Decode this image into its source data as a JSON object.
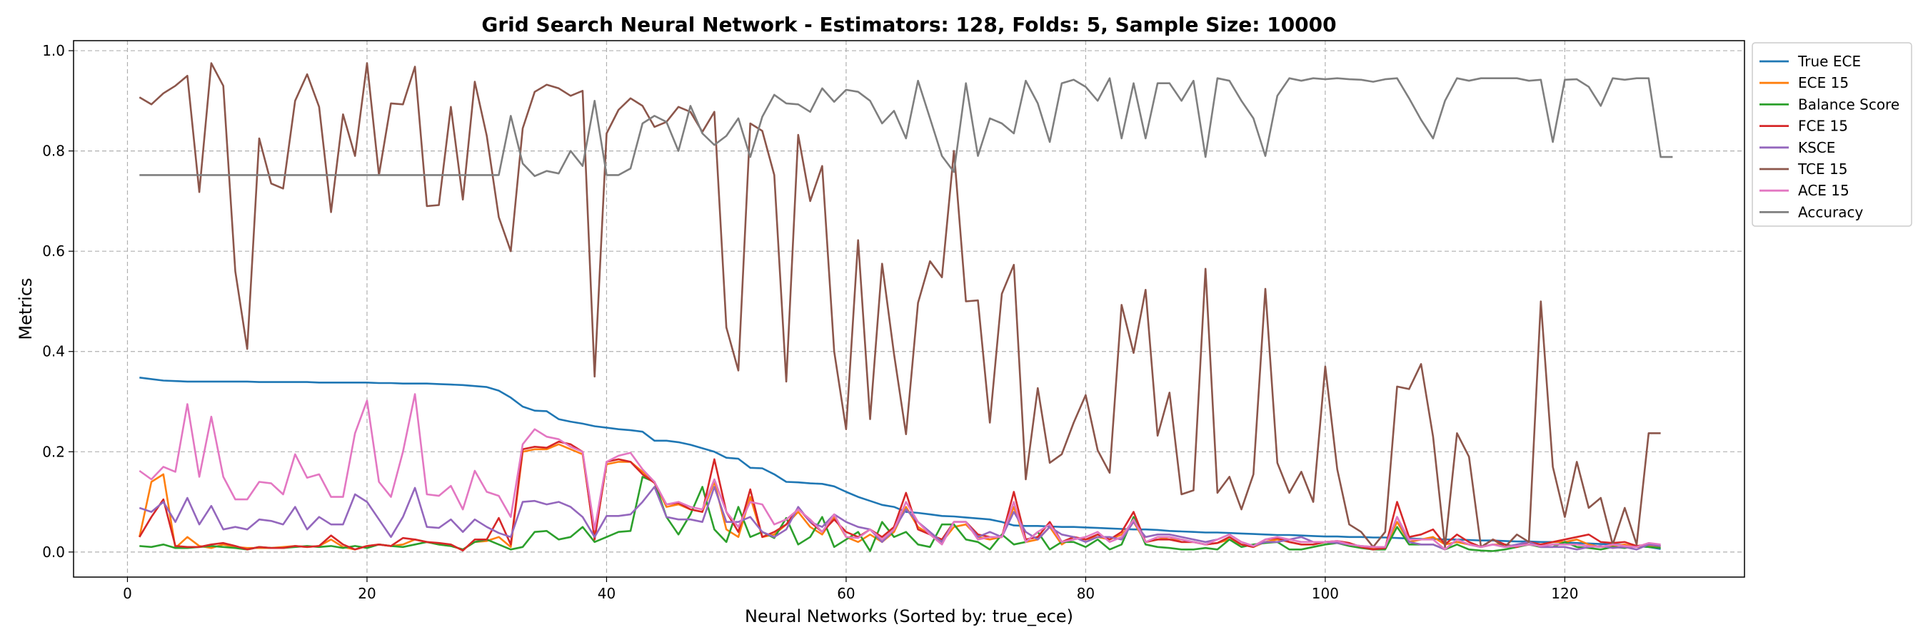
{
  "chart_data": {
    "type": "line",
    "title": "Grid Search Neural Network - Estimators: 128, Folds: 5, Sample Size: 10000",
    "xlabel": "Neural Networks (Sorted by: true_ece)",
    "ylabel": "Metrics",
    "xlim": [
      -4.5,
      135
    ],
    "ylim": [
      -0.05,
      1.02
    ],
    "xticks": [
      0,
      20,
      40,
      60,
      80,
      100,
      120
    ],
    "yticks": [
      0.0,
      0.2,
      0.4,
      0.6,
      0.8,
      1.0
    ],
    "xtick_labels": [
      "0",
      "20",
      "40",
      "60",
      "80",
      "100",
      "120"
    ],
    "ytick_labels": [
      "0.0",
      "0.2",
      "0.4",
      "0.6",
      "0.8",
      "1.0"
    ],
    "grid": true,
    "legend_position": "outside-top-right",
    "x_start": 1,
    "series": [
      {
        "name": "True ECE",
        "color": "#1f77b4",
        "values": [
          0.348,
          0.345,
          0.342,
          0.341,
          0.34,
          0.34,
          0.34,
          0.34,
          0.34,
          0.34,
          0.339,
          0.339,
          0.339,
          0.339,
          0.339,
          0.338,
          0.338,
          0.338,
          0.338,
          0.338,
          0.337,
          0.337,
          0.336,
          0.336,
          0.336,
          0.335,
          0.334,
          0.333,
          0.331,
          0.329,
          0.322,
          0.308,
          0.29,
          0.282,
          0.281,
          0.265,
          0.26,
          0.256,
          0.251,
          0.248,
          0.245,
          0.243,
          0.24,
          0.222,
          0.222,
          0.219,
          0.214,
          0.207,
          0.2,
          0.188,
          0.186,
          0.168,
          0.167,
          0.155,
          0.14,
          0.139,
          0.137,
          0.136,
          0.131,
          0.12,
          0.11,
          0.102,
          0.094,
          0.09,
          0.08,
          0.078,
          0.075,
          0.072,
          0.071,
          0.069,
          0.067,
          0.065,
          0.06,
          0.053,
          0.052,
          0.052,
          0.051,
          0.05,
          0.05,
          0.049,
          0.048,
          0.047,
          0.046,
          0.045,
          0.045,
          0.044,
          0.042,
          0.041,
          0.04,
          0.039,
          0.039,
          0.038,
          0.037,
          0.036,
          0.035,
          0.034,
          0.034,
          0.033,
          0.032,
          0.031,
          0.031,
          0.03,
          0.03,
          0.029,
          0.029,
          0.028,
          0.027,
          0.026,
          0.026,
          0.025,
          0.025,
          0.024,
          0.023,
          0.023,
          0.022,
          0.021,
          0.021,
          0.02,
          0.02,
          0.019,
          0.018,
          0.017,
          0.016,
          0.015,
          0.014,
          0.012,
          0.01,
          0.006
        ]
      },
      {
        "name": "ECE 15",
        "color": "#ff7f0e",
        "values": [
          0.03,
          0.14,
          0.155,
          0.008,
          0.03,
          0.012,
          0.008,
          0.015,
          0.01,
          0.008,
          0.008,
          0.008,
          0.01,
          0.012,
          0.01,
          0.012,
          0.025,
          0.01,
          0.005,
          0.012,
          0.015,
          0.012,
          0.015,
          0.025,
          0.02,
          0.015,
          0.012,
          0.005,
          0.02,
          0.022,
          0.03,
          0.01,
          0.2,
          0.205,
          0.205,
          0.215,
          0.205,
          0.195,
          0.03,
          0.175,
          0.18,
          0.18,
          0.16,
          0.14,
          0.09,
          0.095,
          0.085,
          0.08,
          0.14,
          0.045,
          0.03,
          0.11,
          0.03,
          0.035,
          0.055,
          0.08,
          0.05,
          0.035,
          0.07,
          0.03,
          0.02,
          0.035,
          0.02,
          0.04,
          0.09,
          0.05,
          0.035,
          0.02,
          0.05,
          0.055,
          0.03,
          0.025,
          0.03,
          0.09,
          0.02,
          0.025,
          0.05,
          0.015,
          0.03,
          0.025,
          0.03,
          0.025,
          0.035,
          0.06,
          0.02,
          0.025,
          0.03,
          0.02,
          0.02,
          0.015,
          0.018,
          0.025,
          0.015,
          0.01,
          0.02,
          0.025,
          0.02,
          0.015,
          0.015,
          0.02,
          0.02,
          0.015,
          0.01,
          0.008,
          0.01,
          0.06,
          0.02,
          0.025,
          0.03,
          0.015,
          0.02,
          0.015,
          0.01,
          0.015,
          0.015,
          0.01,
          0.015,
          0.015,
          0.02,
          0.02,
          0.025,
          0.015,
          0.01,
          0.012,
          0.015,
          0.01,
          0.012,
          0.01
        ]
      },
      {
        "name": "Balance Score",
        "color": "#2ca02c",
        "values": [
          0.012,
          0.01,
          0.015,
          0.008,
          0.008,
          0.01,
          0.012,
          0.01,
          0.008,
          0.005,
          0.01,
          0.008,
          0.008,
          0.01,
          0.012,
          0.01,
          0.012,
          0.008,
          0.012,
          0.008,
          0.015,
          0.012,
          0.01,
          0.015,
          0.02,
          0.015,
          0.012,
          0.005,
          0.02,
          0.025,
          0.015,
          0.005,
          0.01,
          0.04,
          0.042,
          0.025,
          0.03,
          0.05,
          0.02,
          0.03,
          0.04,
          0.042,
          0.15,
          0.14,
          0.07,
          0.035,
          0.075,
          0.13,
          0.045,
          0.02,
          0.09,
          0.03,
          0.04,
          0.028,
          0.068,
          0.015,
          0.03,
          0.07,
          0.01,
          0.025,
          0.04,
          0.002,
          0.06,
          0.03,
          0.04,
          0.015,
          0.01,
          0.055,
          0.055,
          0.025,
          0.02,
          0.005,
          0.035,
          0.015,
          0.02,
          0.04,
          0.005,
          0.02,
          0.02,
          0.01,
          0.025,
          0.005,
          0.015,
          0.07,
          0.015,
          0.01,
          0.008,
          0.005,
          0.005,
          0.008,
          0.005,
          0.025,
          0.01,
          0.015,
          0.018,
          0.02,
          0.005,
          0.005,
          0.01,
          0.015,
          0.018,
          0.012,
          0.008,
          0.005,
          0.005,
          0.05,
          0.015,
          0.015,
          0.015,
          0.005,
          0.015,
          0.005,
          0.003,
          0.002,
          0.005,
          0.01,
          0.015,
          0.01,
          0.01,
          0.02,
          0.01,
          0.008,
          0.005,
          0.01,
          0.008,
          0.012,
          0.01,
          0.008
        ]
      },
      {
        "name": "FCE 15",
        "color": "#d62728",
        "values": [
          0.03,
          0.07,
          0.105,
          0.012,
          0.01,
          0.01,
          0.015,
          0.018,
          0.012,
          0.005,
          0.01,
          0.008,
          0.008,
          0.012,
          0.01,
          0.012,
          0.033,
          0.015,
          0.005,
          0.012,
          0.015,
          0.012,
          0.028,
          0.025,
          0.02,
          0.018,
          0.015,
          0.003,
          0.025,
          0.025,
          0.068,
          0.015,
          0.205,
          0.21,
          0.208,
          0.22,
          0.215,
          0.2,
          0.025,
          0.18,
          0.185,
          0.18,
          0.155,
          0.138,
          0.095,
          0.098,
          0.085,
          0.08,
          0.185,
          0.08,
          0.04,
          0.125,
          0.03,
          0.04,
          0.055,
          0.088,
          0.06,
          0.04,
          0.065,
          0.04,
          0.03,
          0.045,
          0.03,
          0.05,
          0.118,
          0.045,
          0.035,
          0.025,
          0.06,
          0.06,
          0.035,
          0.03,
          0.03,
          0.12,
          0.025,
          0.03,
          0.06,
          0.02,
          0.03,
          0.025,
          0.035,
          0.025,
          0.04,
          0.08,
          0.02,
          0.025,
          0.025,
          0.02,
          0.02,
          0.015,
          0.018,
          0.03,
          0.015,
          0.01,
          0.025,
          0.028,
          0.02,
          0.015,
          0.015,
          0.02,
          0.022,
          0.018,
          0.01,
          0.005,
          0.008,
          0.1,
          0.03,
          0.035,
          0.045,
          0.015,
          0.035,
          0.02,
          0.01,
          0.025,
          0.015,
          0.01,
          0.02,
          0.015,
          0.02,
          0.025,
          0.03,
          0.035,
          0.02,
          0.018,
          0.02,
          0.012,
          0.015,
          0.012
        ]
      },
      {
        "name": "KSCE",
        "color": "#9467bd",
        "values": [
          0.088,
          0.08,
          0.1,
          0.06,
          0.108,
          0.055,
          0.092,
          0.045,
          0.05,
          0.045,
          0.065,
          0.062,
          0.055,
          0.09,
          0.045,
          0.07,
          0.055,
          0.055,
          0.115,
          0.1,
          0.065,
          0.03,
          0.07,
          0.128,
          0.05,
          0.048,
          0.065,
          0.04,
          0.065,
          0.05,
          0.038,
          0.03,
          0.1,
          0.102,
          0.095,
          0.1,
          0.09,
          0.07,
          0.03,
          0.072,
          0.072,
          0.075,
          0.1,
          0.13,
          0.07,
          0.065,
          0.065,
          0.06,
          0.13,
          0.06,
          0.06,
          0.07,
          0.04,
          0.03,
          0.045,
          0.09,
          0.06,
          0.05,
          0.075,
          0.06,
          0.05,
          0.045,
          0.02,
          0.045,
          0.085,
          0.06,
          0.04,
          0.02,
          0.06,
          0.06,
          0.03,
          0.04,
          0.03,
          0.08,
          0.04,
          0.025,
          0.05,
          0.035,
          0.03,
          0.02,
          0.03,
          0.03,
          0.025,
          0.06,
          0.03,
          0.035,
          0.035,
          0.03,
          0.025,
          0.02,
          0.025,
          0.035,
          0.02,
          0.012,
          0.02,
          0.02,
          0.025,
          0.03,
          0.02,
          0.02,
          0.018,
          0.015,
          0.012,
          0.01,
          0.01,
          0.07,
          0.02,
          0.015,
          0.015,
          0.005,
          0.025,
          0.015,
          0.01,
          0.015,
          0.01,
          0.015,
          0.02,
          0.01,
          0.01,
          0.01,
          0.005,
          0.01,
          0.012,
          0.008,
          0.01,
          0.005,
          0.015,
          0.012
        ]
      },
      {
        "name": "TCE 15",
        "color": "#8c564b",
        "values": [
          0.907,
          0.893,
          0.915,
          0.93,
          0.95,
          0.718,
          0.975,
          0.93,
          0.56,
          0.405,
          0.825,
          0.735,
          0.725,
          0.9,
          0.953,
          0.888,
          0.678,
          0.873,
          0.79,
          0.975,
          0.752,
          0.895,
          0.893,
          0.968,
          0.69,
          0.692,
          0.888,
          0.703,
          0.938,
          0.83,
          0.668,
          0.6,
          0.845,
          0.918,
          0.932,
          0.925,
          0.91,
          0.92,
          0.35,
          0.835,
          0.882,
          0.905,
          0.89,
          0.848,
          0.858,
          0.888,
          0.878,
          0.838,
          0.878,
          0.448,
          0.362,
          0.855,
          0.84,
          0.752,
          0.34,
          0.832,
          0.7,
          0.77,
          0.4,
          0.245,
          0.622,
          0.265,
          0.575,
          0.395,
          0.235,
          0.497,
          0.58,
          0.548,
          0.8,
          0.5,
          0.502,
          0.258,
          0.515,
          0.573,
          0.145,
          0.327,
          0.178,
          0.195,
          0.258,
          0.313,
          0.203,
          0.158,
          0.493,
          0.397,
          0.523,
          0.232,
          0.318,
          0.115,
          0.123,
          0.565,
          0.118,
          0.15,
          0.085,
          0.155,
          0.525,
          0.178,
          0.118,
          0.16,
          0.1,
          0.37,
          0.165,
          0.055,
          0.04,
          0.01,
          0.04,
          0.33,
          0.325,
          0.375,
          0.23,
          0.01,
          0.237,
          0.19,
          0.01,
          0.025,
          0.01,
          0.035,
          0.02,
          0.5,
          0.17,
          0.07,
          0.18,
          0.088,
          0.108,
          0.015,
          0.088,
          0.015,
          0.237,
          0.237
        ]
      },
      {
        "name": "ACE 15",
        "color": "#e377c2",
        "values": [
          0.162,
          0.145,
          0.17,
          0.16,
          0.295,
          0.15,
          0.27,
          0.15,
          0.105,
          0.105,
          0.14,
          0.137,
          0.115,
          0.195,
          0.148,
          0.155,
          0.11,
          0.11,
          0.237,
          0.302,
          0.14,
          0.11,
          0.2,
          0.315,
          0.115,
          0.112,
          0.132,
          0.085,
          0.162,
          0.12,
          0.112,
          0.07,
          0.215,
          0.245,
          0.23,
          0.225,
          0.21,
          0.2,
          0.045,
          0.18,
          0.192,
          0.198,
          0.165,
          0.14,
          0.095,
          0.1,
          0.09,
          0.085,
          0.145,
          0.08,
          0.05,
          0.1,
          0.095,
          0.055,
          0.065,
          0.085,
          0.065,
          0.04,
          0.075,
          0.03,
          0.028,
          0.045,
          0.025,
          0.045,
          0.1,
          0.06,
          0.035,
          0.015,
          0.06,
          0.06,
          0.025,
          0.03,
          0.03,
          0.1,
          0.02,
          0.04,
          0.055,
          0.02,
          0.025,
          0.03,
          0.04,
          0.02,
          0.03,
          0.065,
          0.02,
          0.03,
          0.03,
          0.025,
          0.02,
          0.015,
          0.025,
          0.035,
          0.02,
          0.012,
          0.025,
          0.03,
          0.025,
          0.02,
          0.02,
          0.02,
          0.022,
          0.015,
          0.012,
          0.01,
          0.01,
          0.07,
          0.025,
          0.025,
          0.025,
          0.005,
          0.025,
          0.015,
          0.01,
          0.015,
          0.01,
          0.012,
          0.015,
          0.012,
          0.015,
          0.015,
          0.015,
          0.012,
          0.01,
          0.015,
          0.012,
          0.01,
          0.018,
          0.015
        ]
      },
      {
        "name": "Accuracy",
        "color": "#7f7f7f",
        "values": [
          0.752,
          0.752,
          0.752,
          0.752,
          0.752,
          0.752,
          0.752,
          0.752,
          0.752,
          0.752,
          0.752,
          0.752,
          0.752,
          0.752,
          0.752,
          0.752,
          0.752,
          0.752,
          0.752,
          0.752,
          0.752,
          0.752,
          0.752,
          0.752,
          0.752,
          0.752,
          0.752,
          0.752,
          0.752,
          0.752,
          0.752,
          0.87,
          0.775,
          0.75,
          0.76,
          0.755,
          0.8,
          0.77,
          0.9,
          0.752,
          0.752,
          0.765,
          0.855,
          0.87,
          0.858,
          0.8,
          0.89,
          0.835,
          0.812,
          0.83,
          0.865,
          0.788,
          0.868,
          0.912,
          0.895,
          0.893,
          0.878,
          0.925,
          0.898,
          0.922,
          0.918,
          0.9,
          0.855,
          0.88,
          0.825,
          0.94,
          0.865,
          0.79,
          0.758,
          0.935,
          0.79,
          0.865,
          0.855,
          0.835,
          0.94,
          0.895,
          0.818,
          0.935,
          0.942,
          0.928,
          0.9,
          0.945,
          0.825,
          0.935,
          0.825,
          0.935,
          0.935,
          0.9,
          0.94,
          0.788,
          0.945,
          0.94,
          0.9,
          0.865,
          0.79,
          0.91,
          0.945,
          0.94,
          0.945,
          0.943,
          0.945,
          0.943,
          0.942,
          0.938,
          0.943,
          0.945,
          0.905,
          0.862,
          0.825,
          0.9,
          0.945,
          0.94,
          0.945,
          0.945,
          0.945,
          0.945,
          0.94,
          0.942,
          0.818,
          0.942,
          0.943,
          0.928,
          0.89,
          0.945,
          0.942,
          0.945,
          0.945,
          0.788,
          0.788
        ]
      }
    ]
  }
}
